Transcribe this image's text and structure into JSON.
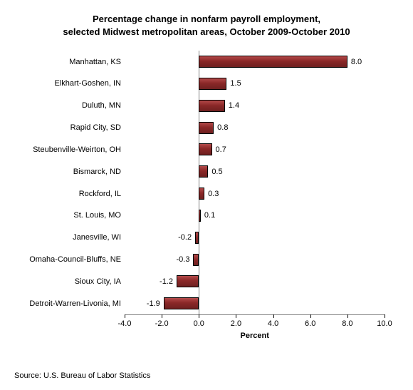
{
  "title_line1": "Percentage change in nonfarm payroll employment,",
  "title_line2": "selected Midwest metropolitan areas, October 2009-October 2010",
  "source": "Source: U.S. Bureau of Labor Statistics",
  "chart": {
    "type": "bar-horizontal",
    "xlabel": "Percent",
    "xlim": [
      -4.0,
      10.0
    ],
    "xtick_step": 2.0,
    "xticks": [
      "-4.0",
      "-2.0",
      "0.0",
      "2.0",
      "4.0",
      "6.0",
      "8.0",
      "10.0"
    ],
    "bar_fill": "#8a2828",
    "bar_border": "#000000",
    "bar_gradient_top": "#b44a4a",
    "bar_gradient_bottom": "#6e1f1f",
    "background_color": "#ffffff",
    "axis_color": "#808080",
    "label_fontsize": 11,
    "title_fontsize": 13,
    "categories": [
      "Manhattan, KS",
      "Elkhart-Goshen, IN",
      "Duluth, MN",
      "Rapid City, SD",
      "Steubenville-Weirton, OH",
      "Bismarck, ND",
      "Rockford, IL",
      "St. Louis, MO",
      "Janesville, WI",
      "Omaha-Council-Bluffs, NE",
      "Sioux City, IA",
      "Detroit-Warren-Livonia, MI"
    ],
    "values": [
      8.0,
      1.5,
      1.4,
      0.8,
      0.7,
      0.5,
      0.3,
      0.1,
      -0.2,
      -0.3,
      -1.2,
      -1.9
    ],
    "value_labels": [
      "8.0",
      "1.5",
      "1.4",
      "0.8",
      "0.7",
      "0.5",
      "0.3",
      "0.1",
      "-0.2",
      "-0.3",
      "-1.2",
      "-1.9"
    ]
  }
}
